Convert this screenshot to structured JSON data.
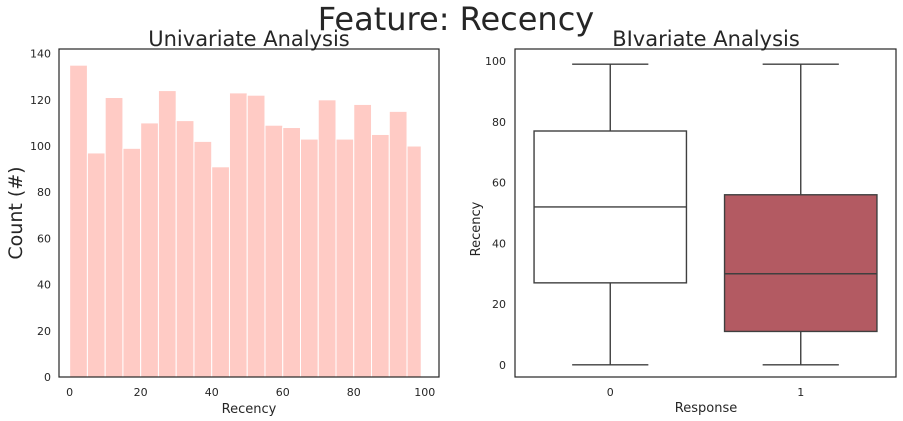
{
  "suptitle": "Feature: Recency",
  "chart_data": [
    {
      "type": "bar",
      "title": "Univariate Analysis",
      "xlabel": "Recency",
      "ylabel": "Count (#)",
      "xlim": [
        -3,
        104
      ],
      "ylim": [
        0,
        142
      ],
      "xticks": [
        0,
        20,
        40,
        60,
        80,
        100
      ],
      "yticks": [
        0,
        20,
        40,
        60,
        80,
        100,
        120,
        140
      ],
      "bins": [
        [
          0,
          5
        ],
        [
          5,
          10
        ],
        [
          10,
          15
        ],
        [
          15,
          20
        ],
        [
          20,
          25
        ],
        [
          25,
          30
        ],
        [
          30,
          35
        ],
        [
          35,
          40
        ],
        [
          40,
          45
        ],
        [
          45,
          50
        ],
        [
          50,
          55
        ],
        [
          55,
          60
        ],
        [
          60,
          65
        ],
        [
          65,
          70
        ],
        [
          70,
          75
        ],
        [
          75,
          80
        ],
        [
          80,
          85
        ],
        [
          85,
          90
        ],
        [
          90,
          95
        ],
        [
          95,
          99
        ]
      ],
      "values": [
        135,
        97,
        121,
        99,
        110,
        124,
        111,
        102,
        91,
        123,
        122,
        109,
        108,
        103,
        120,
        103,
        118,
        105,
        115,
        100
      ],
      "color": "#ffcbc5",
      "grid": false
    },
    {
      "type": "box",
      "title": "BIvariate Analysis",
      "xlabel": "Response",
      "ylabel": "Recency",
      "ylim": [
        -4,
        104
      ],
      "yticks": [
        0,
        20,
        40,
        60,
        80,
        100
      ],
      "categories": [
        "0",
        "1"
      ],
      "boxes": [
        {
          "category": "0",
          "min": 0,
          "q1": 27,
          "median": 52,
          "q3": 77,
          "max": 99,
          "color": "#ffffff"
        },
        {
          "category": "1",
          "min": 0,
          "q1": 11,
          "median": 30,
          "q3": 56,
          "max": 99,
          "color": "#b35a62"
        }
      ],
      "grid": false
    }
  ]
}
